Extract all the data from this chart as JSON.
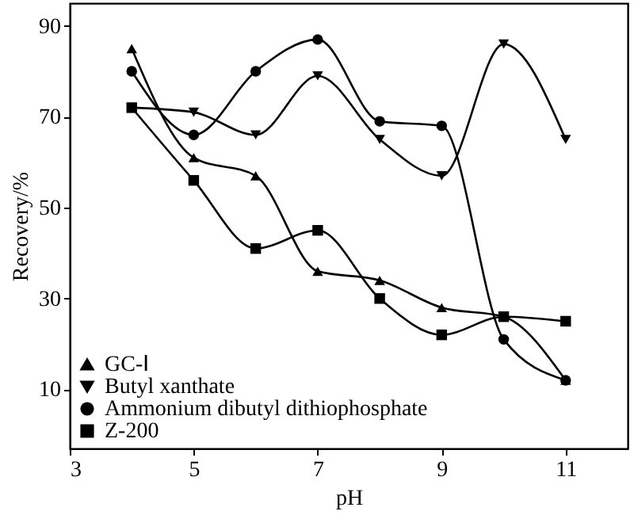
{
  "chart_data": {
    "type": "line",
    "xlabel": "pH",
    "ylabel": "Recovery/%",
    "x": [
      4,
      5,
      6,
      7,
      8,
      9,
      10,
      11
    ],
    "xlim": [
      3,
      12
    ],
    "xticks": [
      3,
      5,
      7,
      9,
      11
    ],
    "ylim": [
      -3,
      95
    ],
    "yticks": [
      10,
      30,
      50,
      70,
      90
    ],
    "grid": false,
    "legend": "bottom left",
    "line_style": "solid",
    "series": [
      {
        "name": "GC-Ⅰ",
        "color": "#000000",
        "marker": "triangle",
        "values": [
          85,
          61,
          57,
          36,
          34,
          28,
          26,
          12
        ]
      },
      {
        "name": "Butyl xanthate",
        "color": "#000000",
        "marker": "triangle-down",
        "values": [
          72,
          71,
          66,
          79,
          65,
          57,
          86,
          65
        ]
      },
      {
        "name": "Ammonium dibutyl dithiophosphate",
        "color": "#000000",
        "marker": "circle",
        "values": [
          80,
          66,
          80,
          87,
          69,
          68,
          21,
          12
        ]
      },
      {
        "name": "Z-200",
        "color": "#000000",
        "marker": "square",
        "values": [
          72,
          56,
          41,
          45,
          30,
          22,
          26,
          25
        ]
      }
    ]
  }
}
